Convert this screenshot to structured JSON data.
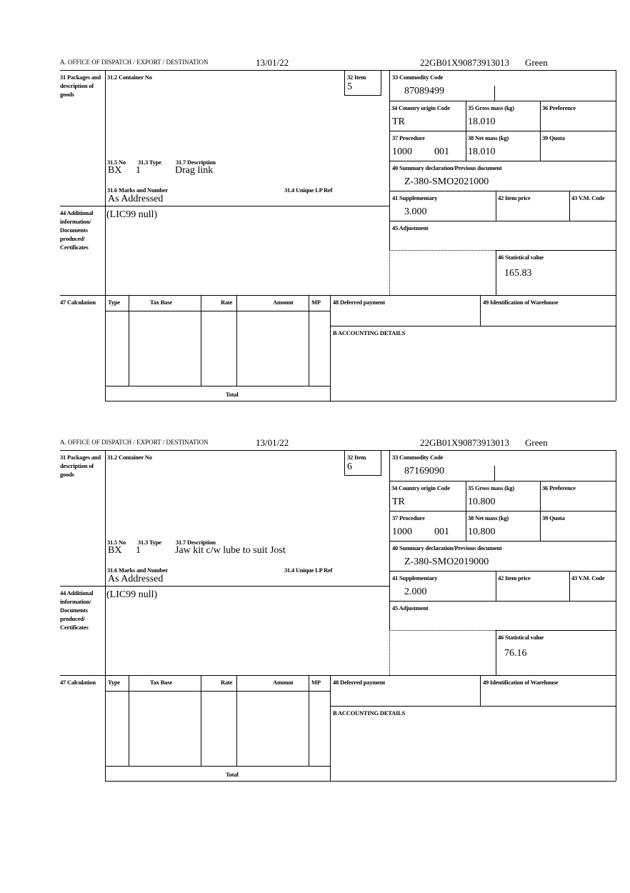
{
  "labels": {
    "office": "A. OFFICE OF DISPATCH / EXPORT / DESTINATION",
    "packages": "31 Packages and description of goods",
    "container": "31.2 Container No",
    "item": "32 Item",
    "no": "31.5 No",
    "type": "31.3 Type",
    "description": "31.7 Description",
    "marks": "31.6 Marks and Number",
    "unique_ref": "31.4 Unique LP Ref",
    "commodity": "33 Commodity Code",
    "country": "34 Country origin Code",
    "gross": "35 Gross mass (kg)",
    "preference": "36 Preference",
    "procedure": "37 Procedure",
    "net": "38 Net mass (kg)",
    "quota": "39 Quota",
    "summary": "40 Summary declaration/Previous document",
    "supplementary": "41 Supplementary",
    "item_price": "42 Item price",
    "vm_code": "43 V.M. Code",
    "adjustment": "45 Adjustment",
    "stat_value": "46 Statistical value",
    "additional": "44 Additional information/ Documents produced/ Certificates",
    "calculation": "47 Calculation",
    "calc_type": "Type",
    "calc_base": "Tax Base",
    "calc_rate": "Rate",
    "calc_amount": "Amount",
    "calc_mp": "MP",
    "deferred": "48 Deferred payment",
    "warehouse": "49 Identification of Warehouse",
    "accounting": "B ACCOUNTING DETAILS",
    "total": "Total"
  },
  "forms": [
    {
      "date": "13/01/22",
      "reference": "22GB01X90873913013",
      "route": "Green",
      "item": "5",
      "no": "BX",
      "type": "1",
      "description": "Drag link",
      "marks": "As Addressed",
      "commodity": "87089499",
      "country": "TR",
      "gross": "18.010",
      "procedure": "1000",
      "procedure_ext": "001",
      "net": "18.010",
      "summary": "Z-380-SMO2021000",
      "supplementary": "3.000",
      "stat_value": "165.83",
      "additional": "(LIC99 null)"
    },
    {
      "date": "13/01/22",
      "reference": "22GB01X90873913013",
      "route": "Green",
      "item": "6",
      "no": "BX",
      "type": "1",
      "description": "Jaw kit c/w lube to suit Jost",
      "marks": "As Addressed",
      "commodity": "87169090",
      "country": "TR",
      "gross": "10.800",
      "procedure": "1000",
      "procedure_ext": "001",
      "net": "10.800",
      "summary": "Z-380-SMO2019000",
      "supplementary": "2.000",
      "stat_value": "76.16",
      "additional": "(LIC99 null)"
    }
  ]
}
